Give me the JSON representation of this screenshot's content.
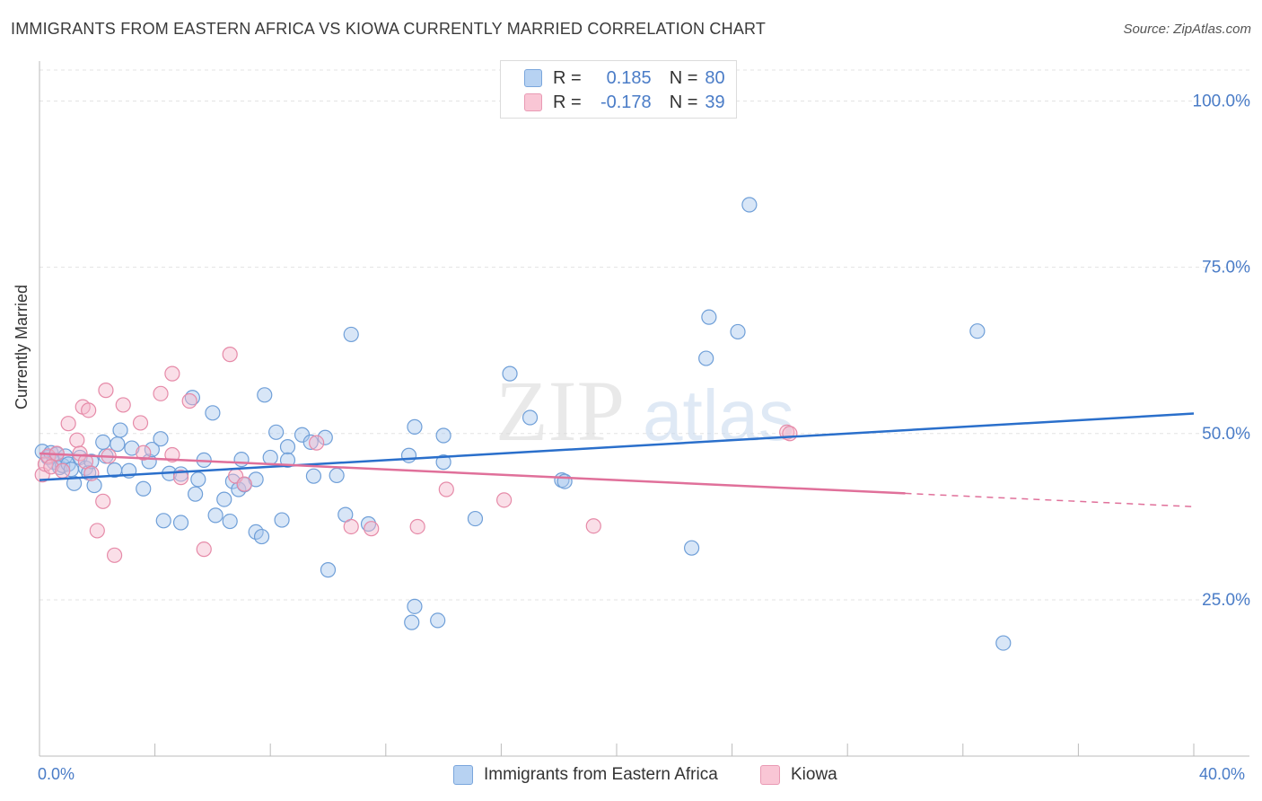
{
  "title": "IMMIGRANTS FROM EASTERN AFRICA VS KIOWA CURRENTLY MARRIED CORRELATION CHART",
  "source": "Source: ZipAtlas.com",
  "watermark": {
    "zip": "ZIP",
    "atlas": "atlas"
  },
  "legend": {
    "r_label": "R =",
    "n_label": "N =",
    "rows": [
      {
        "r": "0.185",
        "n": "80"
      },
      {
        "r": "-0.178",
        "n": "39"
      }
    ]
  },
  "bottom_legend": [
    "Immigrants from Eastern Africa",
    "Kiowa"
  ],
  "x_tick_labels": {
    "min": "0.0%",
    "max": "40.0%"
  },
  "colors": {
    "blue_fill": "#a8c8ee",
    "blue_stroke": "#6f9fd8",
    "blue_line": "#2a6fcb",
    "pink_fill": "#f5b8cb",
    "pink_stroke": "#e68aa8",
    "pink_line": "#e0709a",
    "axis_text": "#4a7cc7"
  },
  "chart_data": {
    "type": "scatter",
    "title": "IMMIGRANTS FROM EASTERN AFRICA VS KIOWA CURRENTLY MARRIED CORRELATION CHART",
    "xlabel": "",
    "ylabel": "Currently Married",
    "xlim": [
      0,
      40
    ],
    "ylim": [
      1.5,
      106
    ],
    "y_ticks": [
      25,
      50,
      75,
      100
    ],
    "y_tick_labels": [
      "25.0%",
      "50.0%",
      "75.0%",
      "100.0%"
    ],
    "grid": true,
    "series": [
      {
        "name": "Immigrants from Eastern Africa",
        "r": 0.185,
        "n": 80,
        "points": [
          [
            0.1,
            47.3
          ],
          [
            0.3,
            46.4
          ],
          [
            0.4,
            47.1
          ],
          [
            0.5,
            45.7
          ],
          [
            0.6,
            46.9
          ],
          [
            0.7,
            44.9
          ],
          [
            0.8,
            45.2
          ],
          [
            0.9,
            46.6
          ],
          [
            1.0,
            45.4
          ],
          [
            1.1,
            44.6
          ],
          [
            1.2,
            42.5
          ],
          [
            1.4,
            46.4
          ],
          [
            1.6,
            44.8
          ],
          [
            1.7,
            44.1
          ],
          [
            1.8,
            45.8
          ],
          [
            1.9,
            42.2
          ],
          [
            2.2,
            48.7
          ],
          [
            2.3,
            46.6
          ],
          [
            2.6,
            44.5
          ],
          [
            2.7,
            48.4
          ],
          [
            2.8,
            50.5
          ],
          [
            3.1,
            44.4
          ],
          [
            3.2,
            47.8
          ],
          [
            3.6,
            41.7
          ],
          [
            3.8,
            45.8
          ],
          [
            3.9,
            47.6
          ],
          [
            4.2,
            49.2
          ],
          [
            4.3,
            36.9
          ],
          [
            4.5,
            44.0
          ],
          [
            4.9,
            36.6
          ],
          [
            4.9,
            43.9
          ],
          [
            5.3,
            55.4
          ],
          [
            5.4,
            40.9
          ],
          [
            5.5,
            43.1
          ],
          [
            5.7,
            46.0
          ],
          [
            6.0,
            53.1
          ],
          [
            6.1,
            37.7
          ],
          [
            6.4,
            40.1
          ],
          [
            6.6,
            36.8
          ],
          [
            6.7,
            42.8
          ],
          [
            6.9,
            41.6
          ],
          [
            7.0,
            46.1
          ],
          [
            7.1,
            42.3
          ],
          [
            7.5,
            35.2
          ],
          [
            7.5,
            43.1
          ],
          [
            7.7,
            34.5
          ],
          [
            7.8,
            55.8
          ],
          [
            8.0,
            46.4
          ],
          [
            8.2,
            50.2
          ],
          [
            8.4,
            37.0
          ],
          [
            8.6,
            48.0
          ],
          [
            8.6,
            46.0
          ],
          [
            9.1,
            49.8
          ],
          [
            9.4,
            48.7
          ],
          [
            9.5,
            43.6
          ],
          [
            9.9,
            49.4
          ],
          [
            10.0,
            29.5
          ],
          [
            10.3,
            43.7
          ],
          [
            10.6,
            37.8
          ],
          [
            10.8,
            64.9
          ],
          [
            11.4,
            36.4
          ],
          [
            12.8,
            46.7
          ],
          [
            12.9,
            21.6
          ],
          [
            13.0,
            51.0
          ],
          [
            13.0,
            24.0
          ],
          [
            13.8,
            21.9
          ],
          [
            14.0,
            45.7
          ],
          [
            14.0,
            49.7
          ],
          [
            15.1,
            37.2
          ],
          [
            16.3,
            59.0
          ],
          [
            17.0,
            52.4
          ],
          [
            18.1,
            43.0
          ],
          [
            18.2,
            42.8
          ],
          [
            22.6,
            32.8
          ],
          [
            23.1,
            61.3
          ],
          [
            23.2,
            67.5
          ],
          [
            24.2,
            65.3
          ],
          [
            24.6,
            84.4
          ],
          [
            32.5,
            65.4
          ],
          [
            33.4,
            18.5
          ]
        ],
        "trend": {
          "x0": 0,
          "y0": 43.0,
          "x1": 40,
          "y1": 53.0,
          "solid_to": 40
        }
      },
      {
        "name": "Kiowa",
        "r": -0.178,
        "n": 39,
        "points": [
          [
            0.1,
            43.8
          ],
          [
            0.2,
            45.4
          ],
          [
            0.3,
            46.6
          ],
          [
            0.4,
            45.0
          ],
          [
            0.6,
            47.0
          ],
          [
            0.8,
            44.4
          ],
          [
            1.0,
            51.5
          ],
          [
            1.3,
            49.0
          ],
          [
            1.4,
            47.0
          ],
          [
            1.5,
            54.0
          ],
          [
            1.6,
            45.8
          ],
          [
            1.7,
            53.5
          ],
          [
            1.8,
            44.0
          ],
          [
            2.0,
            35.4
          ],
          [
            2.2,
            39.8
          ],
          [
            2.3,
            56.5
          ],
          [
            2.4,
            46.6
          ],
          [
            2.6,
            31.7
          ],
          [
            2.9,
            54.3
          ],
          [
            3.5,
            51.6
          ],
          [
            3.6,
            47.1
          ],
          [
            4.2,
            56.0
          ],
          [
            4.6,
            59.0
          ],
          [
            4.6,
            46.8
          ],
          [
            4.9,
            43.4
          ],
          [
            5.2,
            54.9
          ],
          [
            5.7,
            32.6
          ],
          [
            6.6,
            61.9
          ],
          [
            6.8,
            43.6
          ],
          [
            7.1,
            42.4
          ],
          [
            9.6,
            48.6
          ],
          [
            10.8,
            36.0
          ],
          [
            11.5,
            35.7
          ],
          [
            13.1,
            36.0
          ],
          [
            14.1,
            41.6
          ],
          [
            16.1,
            40.0
          ],
          [
            19.2,
            36.1
          ],
          [
            25.9,
            50.2
          ],
          [
            26.0,
            50.0
          ]
        ],
        "trend": {
          "x0": 0,
          "y0": 47.0,
          "x1": 40,
          "y1": 39.0,
          "solid_to": 30.0
        }
      }
    ]
  }
}
